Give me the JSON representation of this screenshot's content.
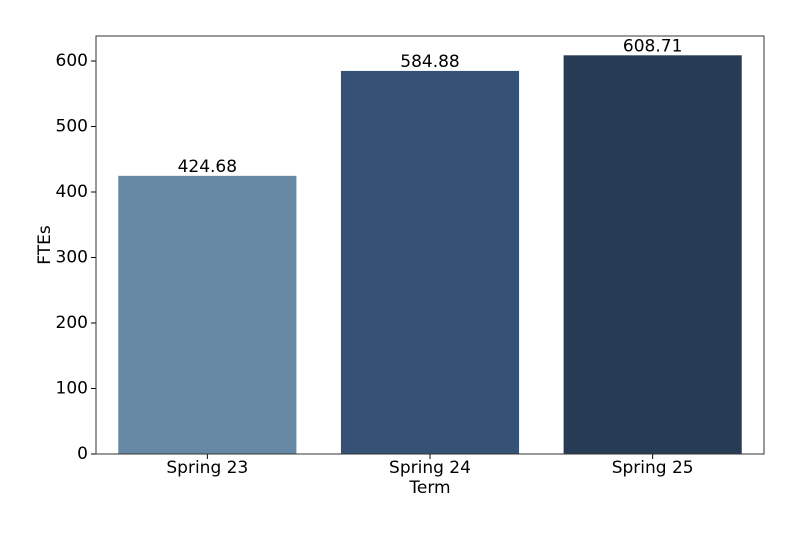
{
  "chart_data": {
    "type": "bar",
    "categories": [
      "Spring 23",
      "Spring 24",
      "Spring 25"
    ],
    "values": [
      424.68,
      584.88,
      608.71
    ],
    "colors": [
      "#6788a5",
      "#355276",
      "#283b55"
    ],
    "xlabel": "Term",
    "ylabel": "FTEs",
    "ylim": [
      0,
      638.2
    ],
    "yticks": [
      0,
      100,
      200,
      300,
      400,
      500,
      600
    ],
    "value_labels_shown": true
  }
}
